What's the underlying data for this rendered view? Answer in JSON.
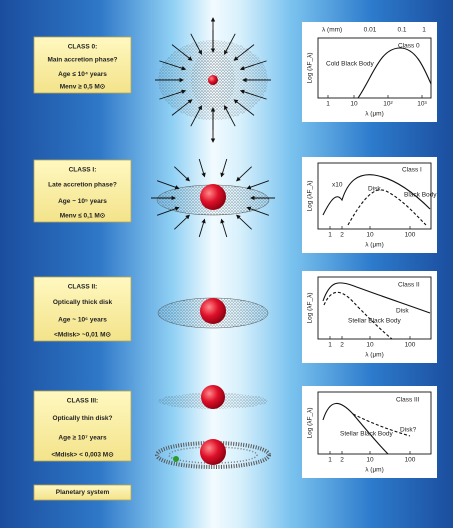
{
  "stages": [
    {
      "lines": [
        "CLASS 0:",
        "Main accretion phase?",
        "Age ≤ 10⁴ years",
        "Menv ≥ 0,5 M⊙"
      ]
    },
    {
      "lines": [
        "CLASS I:",
        "Late accretion phase?",
        "Age ~ 10⁵ years",
        "Menv ≤ 0,1 M⊙"
      ]
    },
    {
      "lines": [
        "CLASS II:",
        "Optically thick disk",
        "Age ~ 10⁶ years",
        "<Mdisk> ~0,01 M⊙"
      ]
    },
    {
      "lines": [
        "CLASS III:",
        "Optically thin disk?",
        "Age ≥ 10⁷ years",
        "<Mdisk> < 0,003 M⊙"
      ]
    },
    {
      "lines": [
        "Planetary system"
      ]
    }
  ],
  "plots": [
    {
      "y_label": "Log (λF_λ)",
      "top_label": "λ (mm)",
      "top_ticks": [
        "0.01",
        "0.1",
        "1"
      ],
      "labels": [
        "Class 0",
        "Cold Black Body"
      ],
      "x_ticks": [
        "1",
        "10",
        "10²",
        "10³"
      ],
      "x_label": "λ (μm)"
    },
    {
      "y_label": "Log (λF_λ)",
      "labels": [
        "Class I",
        "Disk",
        "Black Body",
        "x10"
      ],
      "x_ticks": [
        "1",
        "2",
        "10",
        "100"
      ],
      "x_label": "λ (μm)"
    },
    {
      "y_label": "Log (λF_λ)",
      "labels": [
        "Class II",
        "Disk",
        "Stellar Black Body"
      ],
      "x_ticks": [
        "1",
        "2",
        "10",
        "100"
      ],
      "x_label": "λ (μm)"
    },
    {
      "y_label": "Log (λF_λ)",
      "labels": [
        "Class III",
        "Disk?",
        "Stellar Black Body"
      ],
      "x_ticks": [
        "1",
        "2",
        "10",
        "100"
      ],
      "x_label": "λ (μm)"
    }
  ]
}
